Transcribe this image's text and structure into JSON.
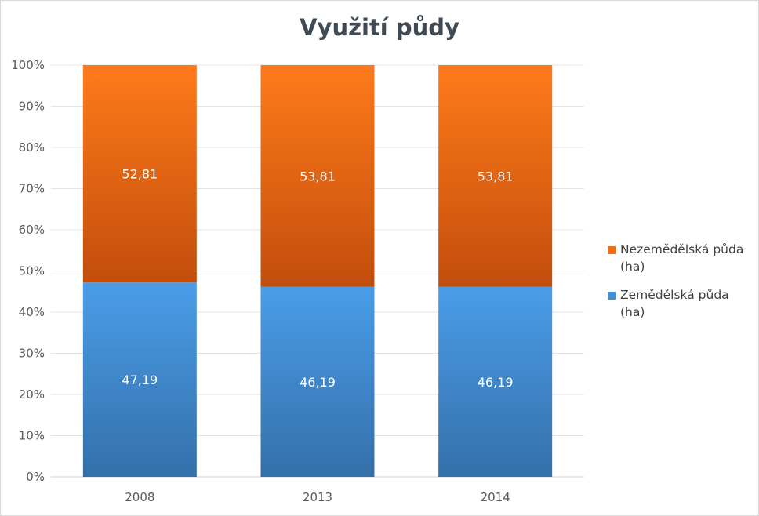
{
  "chart_data": {
    "type": "bar",
    "stacked": true,
    "percent_stacked": true,
    "title": "Využití půdy",
    "categories": [
      "2008",
      "2013",
      "2014"
    ],
    "series": [
      {
        "name": "Zemědělská půda (ha)",
        "values": [
          47.19,
          46.19,
          46.19
        ],
        "labels": [
          "47,19",
          "46,19",
          "46,19"
        ],
        "color_top": "#4a9de8",
        "color_bottom": "#3470aa"
      },
      {
        "name": "Nezemědělská půda (ha)",
        "values": [
          52.81,
          53.81,
          53.81
        ],
        "labels": [
          "52,81",
          "53,81",
          "53,81"
        ],
        "color_top": "#ff7a1a",
        "color_bottom": "#c24e0c"
      }
    ],
    "y_ticks": [
      "0%",
      "10%",
      "20%",
      "30%",
      "40%",
      "50%",
      "60%",
      "70%",
      "80%",
      "90%",
      "100%"
    ],
    "ylim": [
      0,
      100
    ],
    "grid": true,
    "legend_position": "right"
  }
}
